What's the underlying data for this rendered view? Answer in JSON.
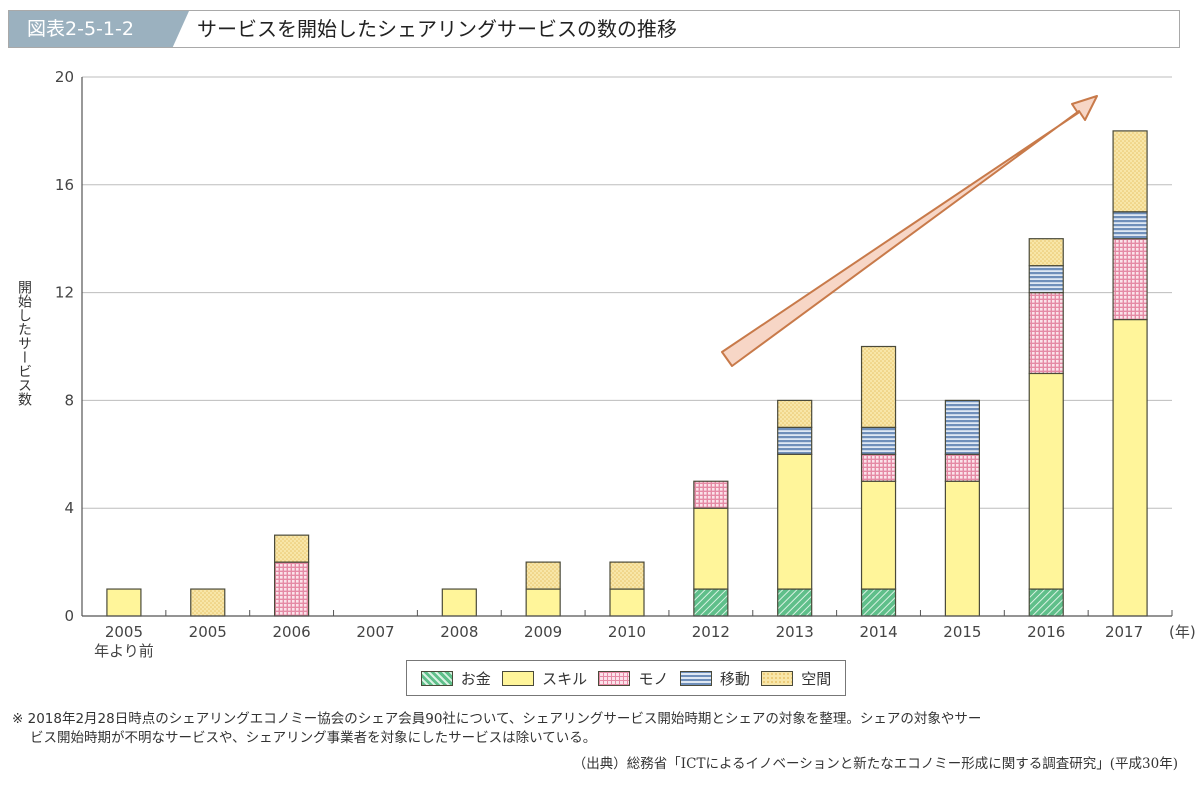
{
  "header": {
    "figure_id": "図表2-5-1-2",
    "title": "サービスを開始したシェアリングサービスの数の推移"
  },
  "chart_data": {
    "type": "bar",
    "stacked": true,
    "title": "サービスを開始したシェアリングサービスの数の推移",
    "xlabel": "(年)",
    "ylabel": "開始したサービス数",
    "ylim": [
      0,
      20
    ],
    "yticks": [
      0,
      4,
      8,
      12,
      16,
      20
    ],
    "grid": true,
    "legend_position": "bottom",
    "categories": [
      "2005\n年より前",
      "2005",
      "2006",
      "2007",
      "2008",
      "2009",
      "2010",
      "2012",
      "2013",
      "2014",
      "2015",
      "2016",
      "2017"
    ],
    "series": [
      {
        "name": "お金",
        "color": "#5fbf8a",
        "pattern": "diagonal",
        "values": [
          0,
          0,
          0,
          0,
          0,
          0,
          0,
          1,
          1,
          1,
          0,
          1,
          0
        ]
      },
      {
        "name": "スキル",
        "color": "#fff59a",
        "pattern": "solid",
        "values": [
          1,
          0,
          0,
          0,
          1,
          1,
          1,
          3,
          5,
          4,
          5,
          8,
          11
        ]
      },
      {
        "name": "モノ",
        "color": "#f4b8c8",
        "pattern": "grid",
        "values": [
          0,
          0,
          2,
          0,
          0,
          0,
          0,
          1,
          0,
          1,
          1,
          3,
          3
        ]
      },
      {
        "name": "移動",
        "color": "#7d9ec8",
        "pattern": "horizontal",
        "values": [
          0,
          0,
          0,
          0,
          0,
          0,
          0,
          0,
          1,
          1,
          2,
          1,
          1
        ]
      },
      {
        "name": "空間",
        "color": "#f7dc95",
        "pattern": "dots",
        "values": [
          0,
          1,
          1,
          0,
          0,
          1,
          1,
          0,
          1,
          3,
          0,
          1,
          3
        ]
      }
    ],
    "totals": [
      1,
      1,
      3,
      0,
      1,
      2,
      2,
      5,
      8,
      10,
      8,
      14,
      18
    ],
    "annotation": "upward trend arrow (2012 → 2017)"
  },
  "legend": {
    "items": [
      "お金",
      "スキル",
      "モノ",
      "移動",
      "空間"
    ]
  },
  "footer": {
    "note_line1": "※ 2018年2月28日時点のシェアリングエコノミー協会のシェア会員90社について、シェアリングサービス開始時期とシェアの対象を整理。シェアの対象やサー",
    "note_line2": "ビス開始時期が不明なサービスや、シェアリング事業者を対象にしたサービスは除いている。",
    "source": "（出典）総務省「ICTによるイノベーションと新たなエコノミー形成に関する調査研究」(平成30年)"
  }
}
